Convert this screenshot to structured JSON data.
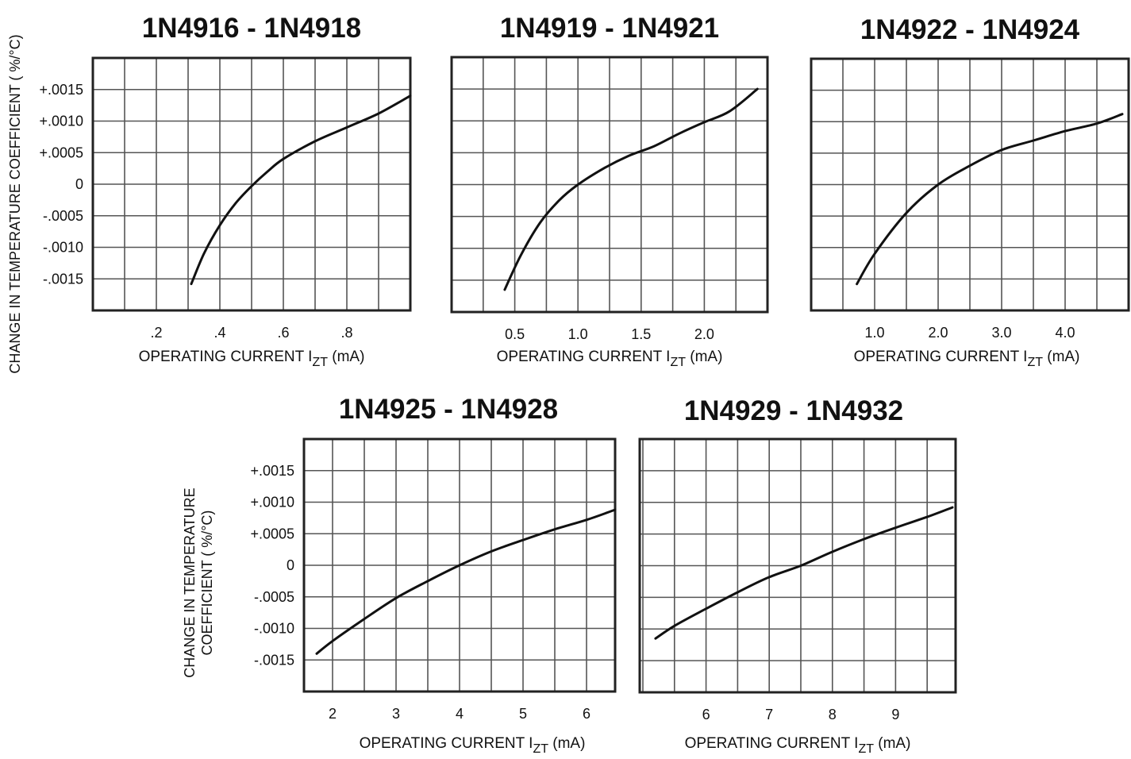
{
  "y_axis_label_top": "CHANGE IN TEMPERATURE  COEFFICIENT ( %/°C)",
  "y_axis_label_bottom": [
    "CHANGE IN TEMPERATURE",
    "COEFFICIENT ( %/°C)"
  ],
  "colors": {
    "curve": "#111111",
    "grid": "#555555",
    "frame": "#222222"
  },
  "chart_data": [
    {
      "type": "line",
      "title": "1N4916 - 1N4918",
      "xlabel_main": "OPERATING CURRENT I",
      "xlabel_sub": "ZT",
      "xlabel_unit": " (mA)",
      "xlim": [
        0.0,
        1.0
      ],
      "ylim": [
        -0.002,
        0.002
      ],
      "x_ticks": [
        0.2,
        0.4,
        0.6,
        0.8
      ],
      "x_tick_labels": [
        ".2",
        ".4",
        ".6",
        ".8"
      ],
      "x_grid_step": 0.1,
      "y_ticks": [
        0.0015,
        0.001,
        0.0005,
        0,
        -0.0005,
        -0.001,
        -0.0015
      ],
      "y_tick_labels": [
        "+.0015",
        "+.0010",
        "+.0005",
        "0",
        "-.0005",
        "-.0010",
        "-.0015"
      ],
      "y_grid": [
        0.0015,
        0.001,
        0.0005,
        0,
        -0.0005,
        -0.001,
        -0.0015
      ],
      "show_y_ticks": true,
      "series": [
        {
          "x": [
            0.31,
            0.35,
            0.4,
            0.45,
            0.5,
            0.55,
            0.6,
            0.7,
            0.8,
            0.9,
            1.0
          ],
          "y": [
            -0.00158,
            -0.0011,
            -0.00065,
            -0.0003,
            -3e-05,
            0.0002,
            0.0004,
            0.00068,
            0.0009,
            0.00112,
            0.0014
          ]
        }
      ]
    },
    {
      "type": "line",
      "title": "1N4919 - 1N4921",
      "xlabel_main": "OPERATING CURRENT I",
      "xlabel_sub": "ZT",
      "xlabel_unit": " (mA)",
      "xlim": [
        0.0,
        2.5
      ],
      "ylim": [
        -0.002,
        0.002
      ],
      "x_ticks": [
        0.5,
        1.0,
        1.5,
        2.0
      ],
      "x_tick_labels": [
        "0.5",
        "1.0",
        "1.5",
        "2.0"
      ],
      "x_grid_step": 0.25,
      "y_grid": [
        0.0015,
        0.001,
        0.0005,
        0,
        -0.0005,
        -0.001,
        -0.0015
      ],
      "show_y_ticks": false,
      "series": [
        {
          "x": [
            0.42,
            0.55,
            0.7,
            0.85,
            1.0,
            1.2,
            1.4,
            1.6,
            1.8,
            2.0,
            2.2,
            2.42
          ],
          "y": [
            -0.00165,
            -0.0011,
            -0.0006,
            -0.00025,
            0.0,
            0.00025,
            0.00045,
            0.0006,
            0.0008,
            0.00098,
            0.00115,
            0.0015
          ]
        }
      ]
    },
    {
      "type": "line",
      "title": "1N4922 - 1N4924",
      "xlabel_main": "OPERATING CURRENT I",
      "xlabel_sub": "ZT",
      "xlabel_unit": " (mA)",
      "xlim": [
        0.0,
        5.0
      ],
      "ylim": [
        -0.002,
        0.002
      ],
      "x_ticks": [
        1.0,
        2.0,
        3.0,
        4.0
      ],
      "x_tick_labels": [
        "1.0",
        "2.0",
        "3.0",
        "4.0"
      ],
      "x_grid_step": 0.5,
      "y_grid": [
        0.0015,
        0.001,
        0.0005,
        0,
        -0.0005,
        -0.001,
        -0.0015
      ],
      "show_y_ticks": false,
      "series": [
        {
          "x": [
            0.72,
            1.0,
            1.5,
            2.0,
            2.5,
            3.0,
            3.5,
            4.0,
            4.5,
            4.9
          ],
          "y": [
            -0.00158,
            -0.0011,
            -0.00045,
            0.0,
            0.0003,
            0.00055,
            0.0007,
            0.00085,
            0.00097,
            0.00112
          ]
        }
      ]
    },
    {
      "type": "line",
      "title": "1N4925 - 1N4928",
      "xlabel_main": "OPERATING CURRENT I",
      "xlabel_sub": "ZT",
      "xlabel_unit": " (mA)",
      "xlim": [
        1.55,
        6.45
      ],
      "ylim": [
        -0.002,
        0.002
      ],
      "x_ticks": [
        2,
        3,
        4,
        5,
        6
      ],
      "x_tick_labels": [
        "2",
        "3",
        "4",
        "5",
        "6"
      ],
      "x_grid_step": 0.5,
      "y_ticks": [
        0.0015,
        0.001,
        0.0005,
        0,
        -0.0005,
        -0.001,
        -0.0015
      ],
      "y_tick_labels": [
        "+.0015",
        "+.0010",
        "+.0005",
        "0",
        "-.0005",
        "-.0010",
        "-.0015"
      ],
      "y_grid": [
        0.0015,
        0.001,
        0.0005,
        0,
        -0.0005,
        -0.001,
        -0.0015
      ],
      "show_y_ticks": true,
      "series": [
        {
          "x": [
            1.75,
            2.0,
            2.5,
            3.0,
            3.5,
            4.0,
            4.5,
            5.0,
            5.5,
            6.0,
            6.45
          ],
          "y": [
            -0.0014,
            -0.0012,
            -0.00085,
            -0.00052,
            -0.00025,
            0.0,
            0.00022,
            0.0004,
            0.00057,
            0.00072,
            0.00088
          ]
        }
      ]
    },
    {
      "type": "line",
      "title": "1N4929 - 1N4932",
      "xlabel_main": "OPERATING CURRENT I",
      "xlabel_sub": "ZT",
      "xlabel_unit": " (mA)",
      "xlim": [
        4.95,
        9.95
      ],
      "ylim": [
        -0.002,
        0.002
      ],
      "x_ticks": [
        6,
        7,
        8,
        9
      ],
      "x_tick_labels": [
        "6",
        "7",
        "8",
        "9"
      ],
      "x_grid_step": 0.5,
      "y_grid": [
        0.0015,
        0.001,
        0.0005,
        0,
        -0.0005,
        -0.001,
        -0.0015
      ],
      "show_y_ticks": false,
      "series": [
        {
          "x": [
            5.2,
            5.5,
            6.0,
            6.5,
            7.0,
            7.5,
            8.0,
            8.5,
            9.0,
            9.5,
            9.9
          ],
          "y": [
            -0.00115,
            -0.00095,
            -0.00068,
            -0.00042,
            -0.00018,
            0.0,
            0.00022,
            0.00042,
            0.0006,
            0.00077,
            0.00092
          ]
        }
      ]
    }
  ]
}
